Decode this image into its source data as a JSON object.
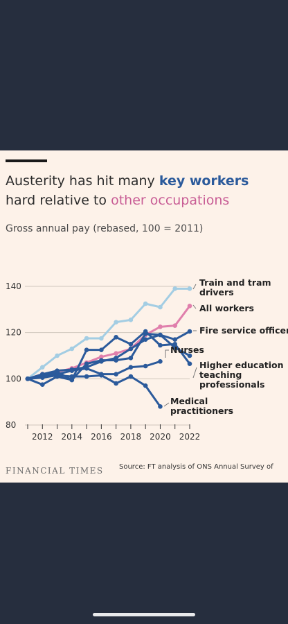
{
  "headline": {
    "part1": "Austerity has hit many ",
    "key_workers": "key workers",
    "part2": " hard relative to ",
    "other_occupations": "other occupations"
  },
  "subtitle": "Gross annual pay (rebased, 100 = 2011)",
  "footer": {
    "logo": "FINANCIAL TIMES",
    "source": "Source: FT analysis of ONS Annual Survey of"
  },
  "colors": {
    "background": "#262e3e",
    "card": "#fdf2e9",
    "dark_blue": "#2b5a9b",
    "light_blue": "#a3cde3",
    "pink": "#e07fac",
    "grid": "#cfc6bd",
    "text": "#333333"
  },
  "chart_data": {
    "type": "line",
    "xlabel": "",
    "ylabel": "",
    "xlim": [
      2011,
      2022
    ],
    "ylim": [
      80,
      140
    ],
    "x_ticks": [
      2012,
      2014,
      2016,
      2018,
      2020,
      2022
    ],
    "y_ticks": [
      80,
      100,
      120,
      140
    ],
    "grid": true,
    "legend": "direct labels at line ends (right)",
    "x": [
      2011,
      2012,
      2013,
      2014,
      2015,
      2016,
      2017,
      2018,
      2019,
      2020,
      2021,
      2022
    ],
    "series": [
      {
        "name": "Train and tram drivers",
        "color": "light_blue",
        "values": [
          100,
          105,
          110,
          113,
          117.5,
          117.5,
          124.5,
          125.5,
          132.5,
          131,
          139,
          139
        ]
      },
      {
        "name": "All workers",
        "color": "pink",
        "values": [
          100,
          102,
          103,
          104.5,
          107,
          109.5,
          111,
          113,
          119,
          122.5,
          123,
          131.5
        ]
      },
      {
        "name": "Fire service officers",
        "color": "dark_blue",
        "values": [
          100,
          97.5,
          101,
          99.5,
          106.5,
          108,
          108,
          109,
          119.5,
          119,
          117,
          120.5
        ]
      },
      {
        "name": "Nurses",
        "color": "dark_blue",
        "values": [
          100,
          102,
          103.5,
          104,
          105,
          107.5,
          109,
          113,
          117,
          119,
          113.5,
          110
        ]
      },
      {
        "name": "Higher education teaching professionals",
        "color": "dark_blue",
        "values": [
          100,
          101,
          103,
          99.5,
          112.5,
          112.5,
          118,
          115,
          120.5,
          114.5,
          115,
          106.5
        ]
      },
      {
        "name": "Medical practitioners",
        "color": "dark_blue",
        "values": [
          100,
          100.5,
          101.5,
          101,
          101,
          101.5,
          98,
          101,
          97,
          88,
          null,
          null
        ]
      }
    ],
    "unlabelled_series": [
      {
        "color": "dark_blue",
        "values": [
          100,
          101.5,
          102,
          103.5,
          104.5,
          102,
          102,
          105,
          105.5,
          107.5,
          null,
          null
        ]
      }
    ]
  },
  "labels": {
    "train": [
      "Train and tram",
      "drivers"
    ],
    "all": [
      "All workers"
    ],
    "fire": [
      "Fire service officers"
    ],
    "nurses": [
      "Nurses"
    ],
    "he": [
      "Higher education",
      "teaching",
      "professionals"
    ],
    "medical": [
      "Medical",
      "practitioners"
    ]
  }
}
